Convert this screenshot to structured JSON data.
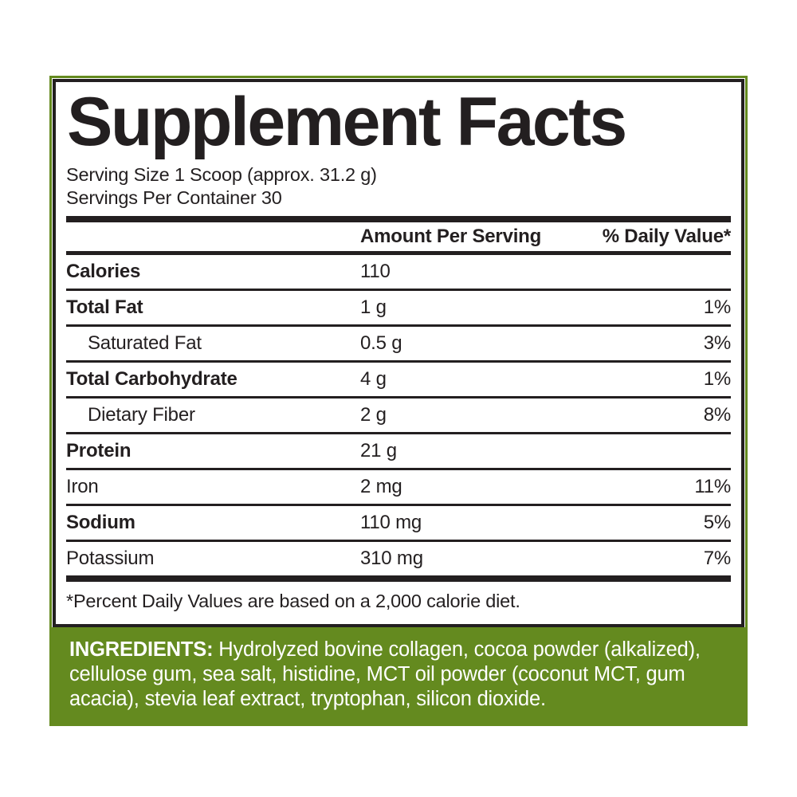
{
  "label": {
    "title": "Supplement Facts",
    "serving_size": "Serving Size 1 Scoop (approx. 31.2 g)",
    "servings_per_container": "Servings Per Container 30",
    "columns": {
      "amount": "Amount Per Serving",
      "daily_value": "% Daily Value*"
    },
    "rows": [
      {
        "name": "Calories",
        "amount": "110",
        "dv": "",
        "bold": true,
        "indent": false
      },
      {
        "name": "Total Fat",
        "amount": "1 g",
        "dv": "1%",
        "bold": true,
        "indent": false
      },
      {
        "name": "Saturated Fat",
        "amount": "0.5 g",
        "dv": "3%",
        "bold": false,
        "indent": true
      },
      {
        "name": "Total Carbohydrate",
        "amount": "4 g",
        "dv": "1%",
        "bold": true,
        "indent": false
      },
      {
        "name": "Dietary Fiber",
        "amount": "2 g",
        "dv": "8%",
        "bold": false,
        "indent": true
      },
      {
        "name": "Protein",
        "amount": "21 g",
        "dv": "",
        "bold": true,
        "indent": false
      },
      {
        "name": "Iron",
        "amount": "2 mg",
        "dv": "11%",
        "bold": false,
        "indent": false
      },
      {
        "name": "Sodium",
        "amount": "110 mg",
        "dv": "5%",
        "bold": true,
        "indent": false
      },
      {
        "name": "Potassium",
        "amount": "310 mg",
        "dv": "7%",
        "bold": false,
        "indent": false
      }
    ],
    "footnote": "*Percent Daily Values are based on a 2,000 calorie diet.",
    "ingredients_label": "INGREDIENTS:",
    "ingredients_text": " Hydrolyzed bovine collagen, cocoa powder (alkalized), cellulose gum, sea salt, histidine, MCT oil powder (coconut MCT, gum acacia), stevia leaf extract, tryptophan, silicon dioxide.",
    "colors": {
      "green": "#648A1F",
      "ink": "#231f20"
    }
  }
}
